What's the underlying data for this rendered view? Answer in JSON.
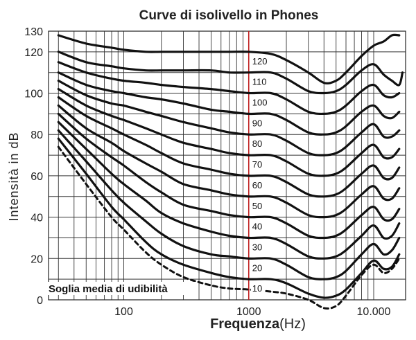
{
  "chart_data": {
    "type": "line",
    "title": "Curve di isolivello in Phones",
    "xlabel": "Frequenza",
    "xlabel_unit": "(Hz)",
    "ylabel": "Intensità in dB",
    "x_scale": "log",
    "xlim": [
      25,
      18000
    ],
    "ylim": [
      0,
      130
    ],
    "yticks": [
      0,
      20,
      40,
      60,
      80,
      100,
      120,
      130
    ],
    "xticks": [
      {
        "value": 100,
        "label": "100"
      },
      {
        "value": 1000,
        "label": "1000",
        "color": "#b02020"
      },
      {
        "value": 10000,
        "label": "10.000"
      }
    ],
    "grid": true,
    "reference_line": {
      "x": 1000,
      "color": "#c02020"
    },
    "series": [
      {
        "name": "Soglia media di udibilità",
        "dashed": true,
        "x": [
          30,
          50,
          80,
          100,
          150,
          200,
          300,
          500,
          700,
          1000,
          1500,
          2000,
          3000,
          4000,
          5000,
          6000,
          8000,
          10000,
          12000,
          14000,
          16000
        ],
        "y": [
          74,
          56,
          40,
          34,
          23,
          17,
          11,
          7,
          5.5,
          5,
          4,
          3,
          0,
          -4,
          -3,
          2,
          12,
          17,
          13,
          15,
          20
        ]
      },
      {
        "name": "10",
        "x": [
          30,
          50,
          80,
          100,
          150,
          200,
          300,
          500,
          700,
          1000,
          1500,
          2000,
          3000,
          4000,
          5000,
          6000,
          8000,
          10000,
          12000,
          14000,
          16000
        ],
        "y": [
          78,
          61,
          45,
          39,
          28,
          22,
          17,
          13,
          11,
          10,
          10,
          8,
          3,
          1,
          2,
          5,
          13,
          19,
          15,
          16,
          22
        ]
      },
      {
        "name": "20",
        "x": [
          30,
          50,
          80,
          100,
          150,
          200,
          300,
          500,
          700,
          1000,
          1500,
          2000,
          3000,
          4000,
          5000,
          6000,
          8000,
          10000,
          12000,
          14000,
          16000
        ],
        "y": [
          82,
          67,
          53,
          47,
          38,
          32,
          26,
          22,
          21,
          20,
          20,
          17,
          11,
          10,
          11,
          14,
          22,
          27,
          22,
          24,
          30
        ]
      },
      {
        "name": "30",
        "x": [
          30,
          50,
          80,
          100,
          150,
          200,
          300,
          500,
          700,
          1000,
          1500,
          2000,
          3000,
          4000,
          5000,
          6000,
          8000,
          10000,
          12000,
          14000,
          16000
        ],
        "y": [
          86,
          73,
          61,
          56,
          48,
          42,
          37,
          33,
          31,
          30,
          30,
          27,
          21,
          20,
          21,
          24,
          31,
          36,
          30,
          31,
          37
        ]
      },
      {
        "name": "40",
        "x": [
          30,
          50,
          80,
          100,
          150,
          200,
          300,
          500,
          700,
          1000,
          1500,
          2000,
          3000,
          4000,
          5000,
          6000,
          8000,
          10000,
          12000,
          14000,
          16000
        ],
        "y": [
          90,
          78,
          69,
          65,
          57,
          52,
          46,
          43,
          41,
          40,
          40,
          37,
          31,
          30,
          31,
          34,
          41,
          45,
          39,
          39,
          44
        ]
      },
      {
        "name": "50",
        "x": [
          30,
          50,
          80,
          100,
          150,
          200,
          300,
          500,
          700,
          1000,
          1500,
          2000,
          3000,
          4000,
          5000,
          6000,
          8000,
          10000,
          12000,
          14000,
          16000
        ],
        "y": [
          94,
          83,
          76,
          72,
          66,
          62,
          56,
          53,
          51,
          50,
          50,
          47,
          41,
          40,
          41,
          44,
          51,
          55,
          49,
          49,
          54
        ]
      },
      {
        "name": "60",
        "x": [
          30,
          50,
          80,
          100,
          150,
          200,
          300,
          500,
          700,
          1000,
          1500,
          2000,
          3000,
          4000,
          5000,
          6000,
          8000,
          10000,
          12000,
          14000,
          16000
        ],
        "y": [
          98,
          89,
          83,
          80,
          75,
          71,
          66,
          63,
          61,
          60,
          60,
          57,
          51,
          50,
          51,
          54,
          61,
          65,
          59,
          59,
          64
        ]
      },
      {
        "name": "70",
        "x": [
          30,
          50,
          80,
          100,
          150,
          200,
          300,
          500,
          700,
          1000,
          1500,
          2000,
          3000,
          4000,
          5000,
          6000,
          8000,
          10000,
          12000,
          14000,
          16000
        ],
        "y": [
          102,
          94,
          89,
          87,
          83,
          80,
          76,
          73,
          71,
          70,
          70,
          67,
          61,
          60,
          61,
          64,
          71,
          75,
          69,
          69,
          73
        ]
      },
      {
        "name": "80",
        "x": [
          30,
          50,
          80,
          100,
          150,
          200,
          300,
          500,
          700,
          1000,
          1500,
          2000,
          3000,
          4000,
          5000,
          6000,
          8000,
          10000,
          12000,
          14000,
          16000
        ],
        "y": [
          106,
          99,
          95,
          94,
          91,
          89,
          86,
          83,
          81,
          80,
          80,
          77,
          71,
          70,
          71,
          74,
          81,
          85,
          79,
          79,
          82
        ]
      },
      {
        "name": "90",
        "x": [
          30,
          50,
          80,
          100,
          150,
          200,
          300,
          500,
          700,
          1000,
          1500,
          2000,
          3000,
          4000,
          5000,
          6000,
          8000,
          10000,
          12000,
          14000,
          16000
        ],
        "y": [
          110,
          104,
          101,
          100,
          98,
          97,
          95,
          92,
          91,
          90,
          90,
          87,
          81,
          80,
          81,
          84,
          91,
          94,
          89,
          88,
          91
        ]
      },
      {
        "name": "100",
        "x": [
          30,
          50,
          80,
          100,
          150,
          200,
          300,
          500,
          700,
          1000,
          1500,
          2000,
          3000,
          4000,
          5000,
          6000,
          8000,
          10000,
          12000,
          14000,
          16000
        ],
        "y": [
          115,
          110,
          107,
          106,
          105,
          104,
          103,
          102,
          101,
          100,
          100,
          97,
          91,
          90,
          91,
          94,
          101,
          104,
          99,
          98,
          100
        ]
      },
      {
        "name": "110",
        "x": [
          30,
          50,
          80,
          100,
          150,
          200,
          300,
          500,
          700,
          1000,
          1500,
          2000,
          3000,
          4000,
          5000,
          6000,
          8000,
          10000,
          12000,
          14000,
          16000,
          17000
        ],
        "y": [
          120,
          115,
          113,
          112,
          111,
          111,
          111,
          111,
          110,
          110,
          110,
          107,
          101,
          100,
          101,
          104,
          111,
          114,
          109,
          106,
          104,
          110
        ]
      },
      {
        "name": "120",
        "x": [
          30,
          50,
          80,
          100,
          150,
          200,
          300,
          500,
          700,
          1000,
          1500,
          2000,
          3000,
          4000,
          5000,
          6000,
          8000,
          10000,
          12000,
          14000,
          16000
        ],
        "y": [
          128,
          124,
          122,
          121,
          120,
          120,
          120,
          120,
          120,
          120,
          119,
          116,
          110,
          105,
          106,
          110,
          118,
          123,
          125,
          128,
          128
        ]
      }
    ]
  }
}
